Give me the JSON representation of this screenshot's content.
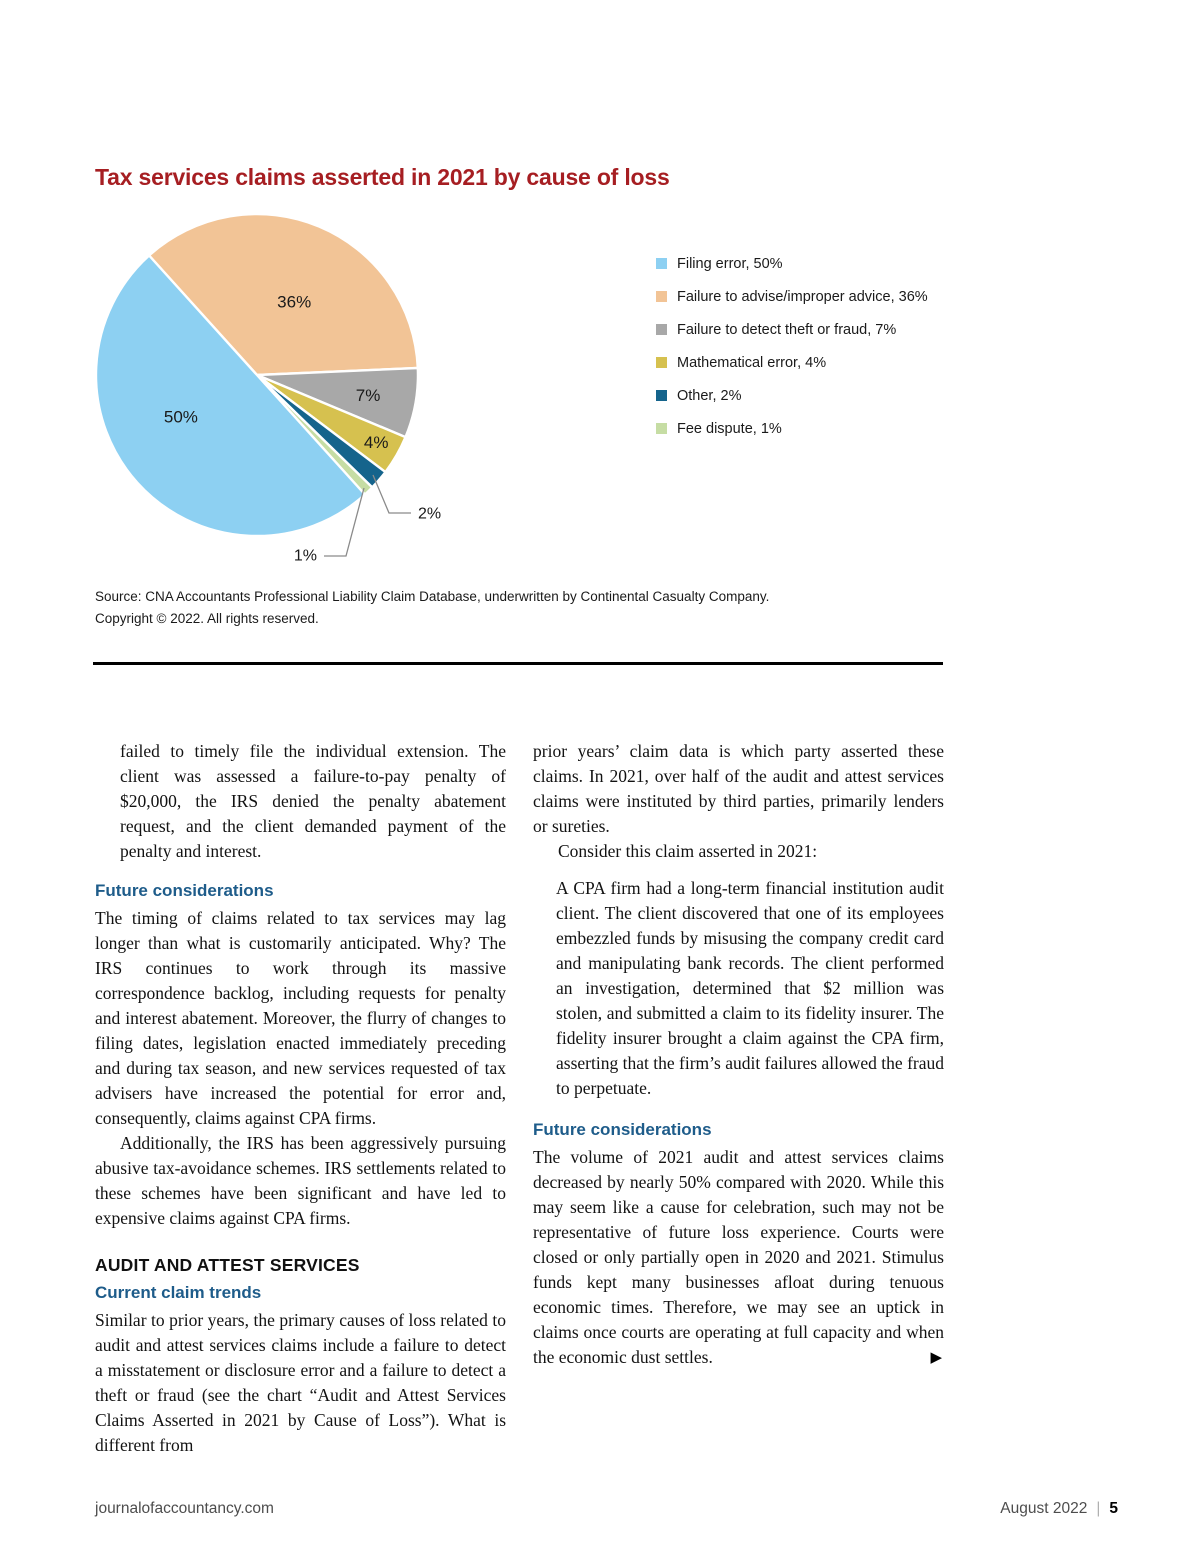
{
  "chart_data": {
    "type": "pie",
    "title": "Tax services claims asserted in 2021 by cause of loss",
    "slices": [
      {
        "label": "Filing error",
        "value": 50,
        "color": "#8DD0F2",
        "value_label": {
          "placement": "inside",
          "angle": 241,
          "r": 87
        }
      },
      {
        "label": "Failure to advise/improper advice",
        "value": 36,
        "color": "#F2C496",
        "value_label": {
          "placement": "inside",
          "angle": 27,
          "r": 82
        }
      },
      {
        "label": "Failure to detect theft or fraud",
        "value": 7,
        "color": "#A8A8A8",
        "value_label": {
          "placement": "inside",
          "angle": 100.5,
          "r": 113
        }
      },
      {
        "label": "Mathematical error",
        "value": 4,
        "color": "#D6C14F",
        "value_label": {
          "placement": "inside",
          "angle": 119.5,
          "r": 137
        }
      },
      {
        "label": "Other",
        "value": 2,
        "color": "#15648C",
        "value_label": {
          "placement": "leader",
          "points": [
            [
              373,
              475
            ],
            [
              389,
              513
            ],
            [
              411,
              513
            ]
          ],
          "text_pos": [
            418,
            514
          ],
          "anchor": "start"
        }
      },
      {
        "label": "Fee dispute",
        "value": 1,
        "color": "#C6DDA4",
        "value_label": {
          "placement": "leader",
          "points": [
            [
              364,
              488
            ],
            [
              346,
              556
            ],
            [
              324,
              556
            ]
          ],
          "text_pos": [
            317,
            556
          ],
          "anchor": "end"
        }
      }
    ],
    "layout": {
      "center": [
        257,
        375
      ],
      "radius": 161,
      "start_angle_deg_from_north": -42.1,
      "draw_order": [
        1,
        2,
        3,
        4,
        5,
        0
      ],
      "clockwise": true,
      "slice_gap_color": "#ffffff",
      "leader_line_color": "#8a8a8a",
      "legend_position": "right",
      "grid": false
    },
    "legend_format": "{label}, {value}%"
  },
  "chart": {
    "title": "Tax services claims asserted in 2021 by cause of loss"
  },
  "source": {
    "line1": "Source: CNA Accountants Professional Liability Claim Database, underwritten by Continental Casualty Company.",
    "line2": "Copyright © 2022. All rights reserved."
  },
  "article": {
    "left": {
      "continued_case_text": "failed to timely file the individual extension. The client was assessed a failure-to-pay penalty of $20,000, the IRS denied the penalty abatement request, and the client demanded payment of the penalty and interest.",
      "heading_future": "Future considerations",
      "para_timing": "The timing of claims related to tax services may lag longer than what is customarily anticipated. Why? The IRS continues to work through its massive correspondence backlog, including requests for penalty and interest abatement. Moreover, the flurry of changes to filing dates, legislation enacted immediately preceding and during tax season, and new services requested of tax advisers have increased the potential for error and, consequently, claims against CPA firms.",
      "para_additionally": "Additionally, the IRS has been aggressively pursuing abusive tax-avoidance schemes. IRS settlements related to these schemes have been significant and have led to expensive claims against CPA firms.",
      "heading_audit": "AUDIT AND ATTEST SERVICES",
      "heading_trends": "Current claim trends",
      "para_similar": "Similar to prior years, the primary causes of loss related to audit and attest services claims include a failure to detect a misstatement or disclosure error and a failure to detect a theft or fraud (see the chart “Audit and Attest Services Claims Asserted in 2021 by Cause of Loss”). What is different from"
    },
    "right": {
      "para_prior": "prior years’ claim data is which party asserted these claims. In 2021, over half of the audit and attest services claims were instituted by third parties, primarily lenders or sureties.",
      "para_consider": "Consider this claim asserted in 2021:",
      "case_quote": "A CPA firm had a long-term financial institution audit client. The client discovered that one of its employees embezzled funds by misusing the company credit card and manipulating bank records. The client performed an investigation, determined that $2 million was stolen, and submitted a claim to its fidelity insurer. The fidelity insurer brought a claim against the CPA firm, asserting that the firm’s audit failures allowed the fraud to perpetuate.",
      "heading_future": "Future considerations",
      "para_volume": "The volume of 2021 audit and attest services claims decreased by nearly 50% compared with 2020. While this may seem like a cause for celebration, such may not be representative of future loss experience. Courts were closed or only partially open in 2020 and 2021. Stimulus funds kept many businesses afloat during tenuous economic times. Therefore, we may see an uptick in claims once courts are operating at full capacity and when the economic dust settles.",
      "end_marker": "▶"
    }
  },
  "footer": {
    "website": "journalofaccountancy.com",
    "issue_date": "August 2022",
    "separator": "|",
    "page_number": "5"
  },
  "colors": {
    "title_red": "#A61E22",
    "heading_blue": "#1E5C8A",
    "body_text": "#121212",
    "rule_black": "#000000"
  }
}
